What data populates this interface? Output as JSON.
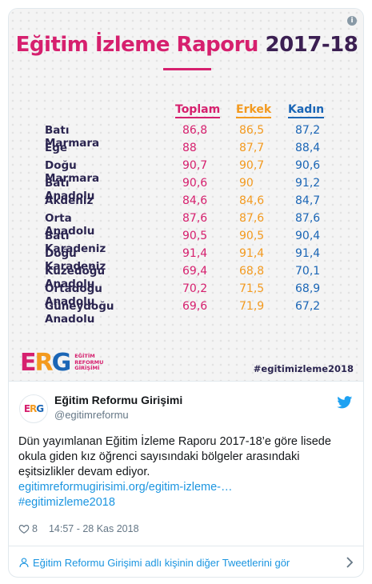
{
  "image": {
    "title_main": "Eğitim İzleme Raporu",
    "title_year": "2017-18",
    "columns": [
      "Toplam",
      "Erkek",
      "Kadın"
    ],
    "rows": [
      {
        "region": "Batı Marmara",
        "toplam": "86,8",
        "erkek": "86,5",
        "kadin": "87,2"
      },
      {
        "region": "Ege",
        "toplam": "88",
        "erkek": "87,7",
        "kadin": "88,4"
      },
      {
        "region": "Doğu Marmara",
        "toplam": "90,7",
        "erkek": "90,7",
        "kadin": "90,6"
      },
      {
        "region": "Batı Anadolu",
        "toplam": "90,6",
        "erkek": "90",
        "kadin": "91,2"
      },
      {
        "region": "Akdeniz",
        "toplam": "84,6",
        "erkek": "84,6",
        "kadin": "84,7"
      },
      {
        "region": "Orta Anadolu",
        "toplam": "87,6",
        "erkek": "87,6",
        "kadin": "87,6"
      },
      {
        "region": "Batı Karadeniz",
        "toplam": "90,5",
        "erkek": "90,5",
        "kadin": "90,4"
      },
      {
        "region": "Doğu Karadeniz",
        "toplam": "91,4",
        "erkek": "91,4",
        "kadin": "91,4"
      },
      {
        "region": "Kuzedoğu Anadolu",
        "toplam": "69,4",
        "erkek": "68,8",
        "kadin": "70,1"
      },
      {
        "region": "Ortadoğu Anadolu",
        "toplam": "70,2",
        "erkek": "71,5",
        "kadin": "68,9"
      },
      {
        "region": "Güneydoğu Anadolu",
        "toplam": "69,6",
        "erkek": "71,9",
        "kadin": "67,2"
      }
    ],
    "logo_mark": "ERG",
    "logo_text": [
      "EĞİTİM",
      "REFORMU",
      "GİRİŞİMİ"
    ],
    "hashtag": "#egitimizleme2018",
    "info_icon": "info-icon"
  },
  "tweet": {
    "avatar_text": "ERG",
    "author_name": "Eğitim Reformu Girişimi",
    "handle": "@egitimreformu",
    "text": "Dün yayımlanan Eğitim İzleme Raporu 2017-18’e göre lisede okula giden kız öğrenci sayısındaki bölgeler arasındaki eşitsizlikler devam ediyor.",
    "link": "egitimreformugirisimi.org/egitim-izleme-…",
    "hashtag": "#egitimizleme2018",
    "like_count": "8",
    "timestamp": "14:57 - 28 Kas 2018",
    "more_tweets_label": "Eğitim Reformu Girişimi adlı kişinin diğer Tweetlerini gör"
  },
  "colors": {
    "magenta": "#d6206e",
    "orange": "#f39a1f",
    "blue": "#1b66b6",
    "link": "#1b95e0"
  }
}
